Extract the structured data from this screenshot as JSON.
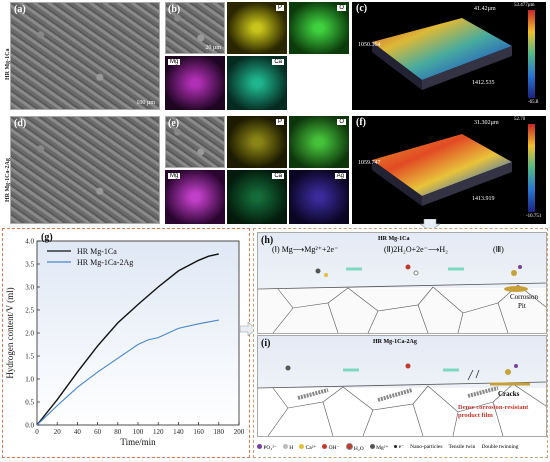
{
  "panels_top": {
    "a": "(a)",
    "b": "(b)",
    "c": "(c)",
    "d": "(d)",
    "e": "(e)",
    "f": "(f)",
    "row1_label": "HR Mg-1Ca",
    "row2_label": "HR Mg-1Ca-2Ag",
    "eds_row1": [
      "P",
      "O",
      "Mg",
      "Ca"
    ],
    "eds_row2": [
      "P",
      "O",
      "Mg",
      "Ca",
      "Ag"
    ],
    "scale_a": "100 µm",
    "scale_b": "20 µm",
    "topo_c": {
      "ztop": "41.42µm",
      "zval": "53.477µm",
      "xval": "1050.364",
      "yval": "1412.535",
      "zmin": "-65.8"
    },
    "topo_f": {
      "ztop": "31.302µm",
      "zval": "52.70",
      "xval": "1059.747",
      "yval": "1413.919",
      "zmin": "-10.751"
    }
  },
  "panel_g": {
    "tag": "(g)"
  },
  "panel_h": {
    "tag": "(h)",
    "subtitle": "HR Mg-1Ca",
    "step1": "(Ⅰ) Mg⟶Mg²⁺+2e⁻",
    "step2": "(Ⅱ)2H₂O+2e⁻⟶H₂",
    "step3": "(Ⅲ)",
    "corrosion": "Corrosion",
    "pit": "Pit"
  },
  "panel_i": {
    "tag": "(i)",
    "subtitle": "HR Mg-1Ca-2Ag",
    "cracks": "Cracks",
    "film": "Dense corrosion-resistant product film"
  },
  "legend": {
    "items": [
      "PO₄³⁻",
      "H",
      "Ca²⁺",
      "OH⁻",
      "H₂O",
      "Mg²⁺",
      "e⁻",
      "Nano-particles",
      "Tensile twin",
      "Double twinning"
    ]
  },
  "chart_data": {
    "type": "line",
    "title": "",
    "xlabel": "Time/min",
    "ylabel": "Hydrogen content/V (ml)",
    "xlim": [
      0,
      200
    ],
    "ylim": [
      0,
      4.0
    ],
    "xticks": [
      0,
      20,
      40,
      60,
      80,
      100,
      120,
      140,
      160,
      180,
      200
    ],
    "yticks": [
      0.0,
      0.5,
      1.0,
      1.5,
      2.0,
      2.5,
      3.0,
      3.5,
      4.0
    ],
    "legend_position": "top-left",
    "series": [
      {
        "name": "HR Mg-1Ca",
        "color": "#111111",
        "x": [
          0,
          20,
          40,
          60,
          80,
          100,
          120,
          140,
          160,
          170,
          180
        ],
        "y": [
          0,
          0.55,
          1.15,
          1.72,
          2.22,
          2.62,
          3.0,
          3.35,
          3.58,
          3.67,
          3.72
        ]
      },
      {
        "name": "HR Mg-1Ca-2Ag",
        "color": "#4a86c8",
        "x": [
          0,
          20,
          40,
          60,
          80,
          100,
          110,
          120,
          140,
          160,
          180
        ],
        "y": [
          0,
          0.42,
          0.82,
          1.15,
          1.45,
          1.75,
          1.85,
          1.9,
          2.1,
          2.2,
          2.28
        ]
      }
    ]
  }
}
